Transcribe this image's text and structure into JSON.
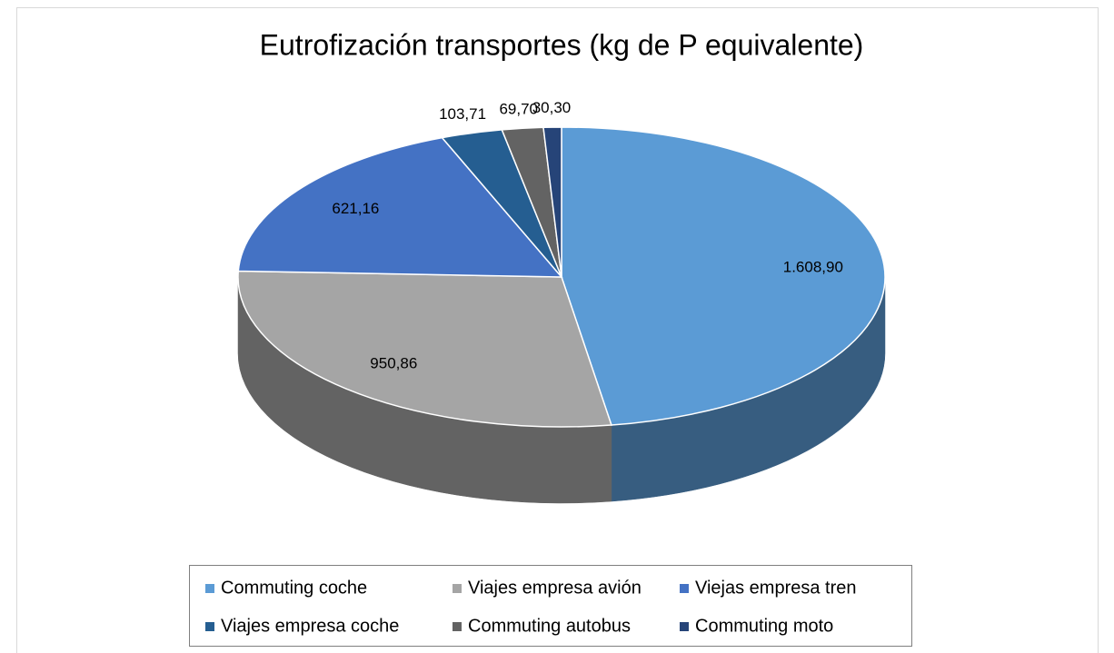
{
  "chart_data": {
    "type": "pie3d",
    "title": "Eutrofización transportes (kg de P equivalente)",
    "categories": [
      "Commuting coche",
      "Viajes empresa avión",
      "Viejas empresa tren",
      "Viajes empresa coche",
      "Commuting autobus",
      "Commuting moto"
    ],
    "values": [
      1608.9,
      950.86,
      621.16,
      103.71,
      69.7,
      30.3
    ],
    "value_labels": [
      "1.608,90",
      "950,86",
      "621,16",
      "103,71",
      "69,70",
      "30,30"
    ],
    "colors": [
      "#5b9bd5",
      "#a5a5a5",
      "#4472c4",
      "#255e91",
      "#636363",
      "#264478"
    ],
    "legend": "bottom"
  }
}
